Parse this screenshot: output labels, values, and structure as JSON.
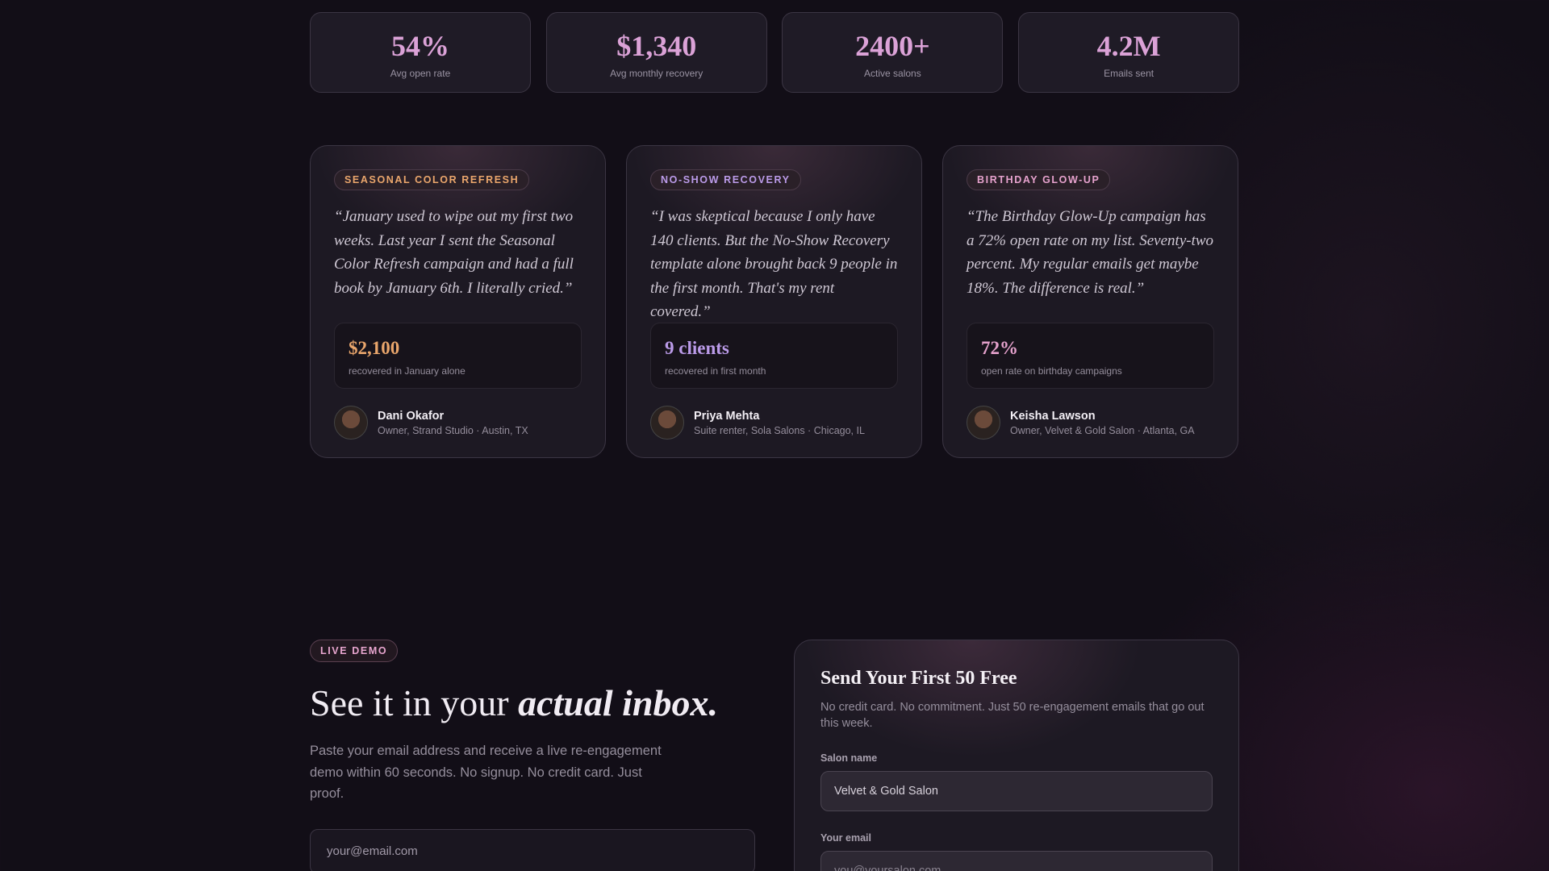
{
  "stats": [
    {
      "value": "54%",
      "label": "Avg open rate"
    },
    {
      "value": "$1,340",
      "label": "Avg monthly recovery"
    },
    {
      "value": "2400+",
      "label": "Active salons"
    },
    {
      "value": "4.2M",
      "label": "Emails sent"
    }
  ],
  "testimonials": [
    {
      "tag": "SEASONAL COLOR REFRESH",
      "quote": "“January used to wipe out my first two weeks. Last year I sent the Seasonal Color Refresh campaign and had a full book by January 6th. I literally cried.”",
      "metric": "$2,100",
      "metric_label": "recovered in January alone",
      "name": "Dani Okafor",
      "role": "Owner, Strand Studio · Austin, TX",
      "color": "#eaa66c"
    },
    {
      "tag": "NO-SHOW RECOVERY",
      "quote": "“I was skeptical because I only have 140 clients. But the No-Show Recovery template alone brought back 9 people in the first month. That's my rent covered.”",
      "metric": "9 clients",
      "metric_label": "recovered in first month",
      "name": "Priya Mehta",
      "role": "Suite renter, Sola Salons · Chicago, IL",
      "color": "#bb9be9"
    },
    {
      "tag": "BIRTHDAY GLOW-UP",
      "quote": "“The Birthday Glow-Up campaign has a 72% open rate on my list. Seventy-two percent. My regular emails get maybe 18%. The difference is real.”",
      "metric": "72%",
      "metric_label": "open rate on birthday campaigns",
      "name": "Keisha Lawson",
      "role": "Owner, Velvet & Gold Salon · Atlanta, GA",
      "color": "#e6a2cd"
    }
  ],
  "demo": {
    "tag": "LIVE DEMO",
    "heading": "See it in your",
    "heading_emphasis": "actual inbox.",
    "description": "Paste your email address and receive a live re-engagement demo within 60 seconds. No signup. No credit card. Just proof.",
    "email_placeholder": "your@email.com"
  },
  "form": {
    "title": "Send Your First 50 Free",
    "subtitle": "No credit card. No commitment. Just 50 re-engagement emails that go out this week.",
    "fields": [
      {
        "label": "Salon name",
        "value": "Velvet & Gold Salon"
      },
      {
        "label": "Your email",
        "placeholder": "you@yoursalon.com"
      }
    ]
  }
}
